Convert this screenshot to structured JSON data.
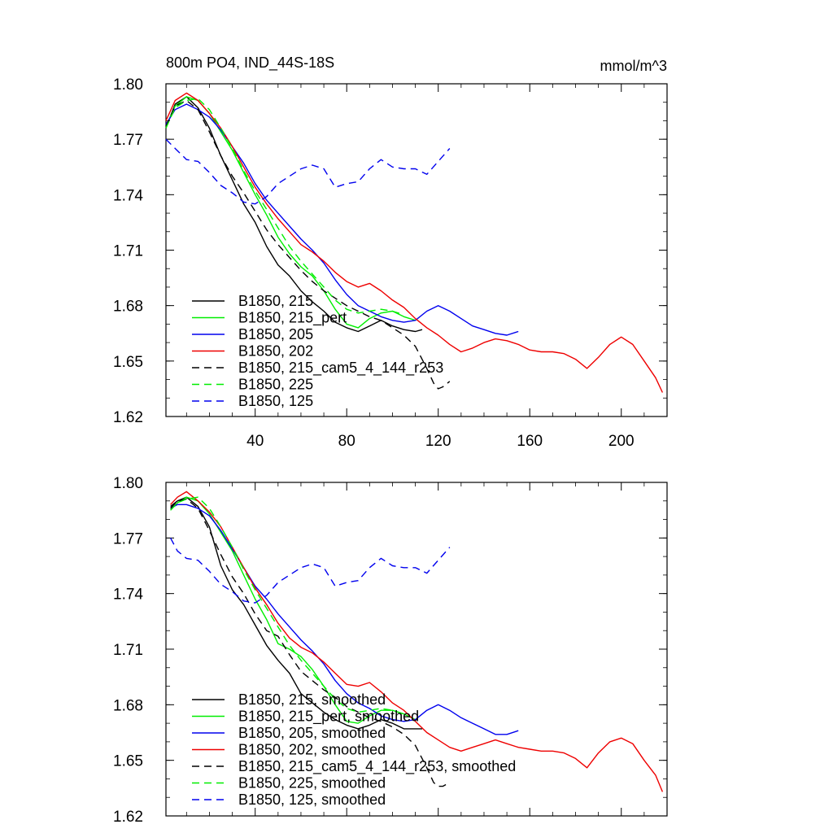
{
  "title_left": "800m PO4, IND_44S-18S",
  "title_right": "mmol/m^3",
  "chart_data": [
    {
      "type": "line",
      "xlim": [
        1,
        220
      ],
      "ylim": [
        1.62,
        1.8
      ],
      "yticks": [
        "1.80",
        "1.77",
        "1.74",
        "1.71",
        "1.68",
        "1.65",
        "1.62"
      ],
      "xticks": [
        "40",
        "80",
        "120",
        "160",
        "200"
      ],
      "legend_position": "bottom-left",
      "series": [
        {
          "name": "B1850, 215",
          "color": "#000000",
          "dash": false,
          "x": [
            1,
            5,
            10,
            15,
            20,
            25,
            30,
            35,
            40,
            45,
            50,
            55,
            60,
            65,
            70,
            75,
            80,
            85,
            90,
            95,
            100,
            105,
            110,
            113
          ],
          "y": [
            1.776,
            1.789,
            1.793,
            1.787,
            1.776,
            1.761,
            1.748,
            1.735,
            1.725,
            1.712,
            1.702,
            1.696,
            1.688,
            1.682,
            1.677,
            1.671,
            1.668,
            1.666,
            1.669,
            1.672,
            1.669,
            1.667,
            1.666,
            1.667
          ]
        },
        {
          "name": "B1850, 215_pert",
          "color": "#00ee00",
          "dash": false,
          "x": [
            1,
            5,
            10,
            15,
            20,
            25,
            30,
            35,
            40,
            45,
            50,
            55,
            60,
            65,
            70,
            75,
            80,
            85,
            90,
            95,
            100,
            105,
            110
          ],
          "y": [
            1.777,
            1.788,
            1.793,
            1.791,
            1.784,
            1.774,
            1.764,
            1.752,
            1.74,
            1.729,
            1.717,
            1.708,
            1.701,
            1.696,
            1.688,
            1.678,
            1.67,
            1.668,
            1.673,
            1.676,
            1.677,
            1.674,
            1.672
          ]
        },
        {
          "name": "B1850, 205",
          "color": "#0000ee",
          "dash": false,
          "x": [
            1,
            5,
            10,
            15,
            20,
            25,
            30,
            35,
            40,
            45,
            50,
            55,
            60,
            65,
            70,
            75,
            80,
            85,
            90,
            95,
            100,
            105,
            110,
            115,
            120,
            125,
            130,
            135,
            140,
            145,
            150,
            155
          ],
          "y": [
            1.778,
            1.786,
            1.789,
            1.786,
            1.782,
            1.775,
            1.766,
            1.757,
            1.746,
            1.737,
            1.73,
            1.723,
            1.716,
            1.71,
            1.703,
            1.694,
            1.686,
            1.68,
            1.677,
            1.674,
            1.672,
            1.671,
            1.672,
            1.677,
            1.68,
            1.677,
            1.673,
            1.669,
            1.667,
            1.665,
            1.664,
            1.666
          ]
        },
        {
          "name": "B1850, 202",
          "color": "#ee0000",
          "dash": false,
          "x": [
            1,
            5,
            10,
            15,
            20,
            25,
            30,
            35,
            40,
            45,
            50,
            55,
            60,
            65,
            70,
            75,
            80,
            85,
            90,
            95,
            100,
            105,
            110,
            115,
            120,
            125,
            130,
            135,
            140,
            145,
            150,
            155,
            160,
            165,
            170,
            175,
            180,
            185,
            190,
            195,
            200,
            205,
            210,
            215,
            218
          ],
          "y": [
            1.78,
            1.791,
            1.795,
            1.791,
            1.784,
            1.776,
            1.766,
            1.755,
            1.744,
            1.735,
            1.727,
            1.72,
            1.713,
            1.709,
            1.704,
            1.698,
            1.693,
            1.69,
            1.692,
            1.688,
            1.683,
            1.679,
            1.673,
            1.668,
            1.664,
            1.659,
            1.655,
            1.657,
            1.66,
            1.662,
            1.661,
            1.659,
            1.656,
            1.655,
            1.655,
            1.654,
            1.651,
            1.646,
            1.652,
            1.659,
            1.663,
            1.659,
            1.65,
            1.641,
            1.633
          ]
        },
        {
          "name": "B1850, 215_cam5_4_144_r253",
          "color": "#000000",
          "dash": true,
          "x": [
            1,
            5,
            10,
            15,
            20,
            25,
            30,
            35,
            40,
            45,
            50,
            55,
            60,
            65,
            70,
            75,
            80,
            85,
            90,
            95,
            100,
            105,
            110,
            115,
            118,
            120,
            122,
            125
          ],
          "y": [
            1.777,
            1.788,
            1.791,
            1.786,
            1.774,
            1.761,
            1.75,
            1.741,
            1.731,
            1.721,
            1.713,
            1.706,
            1.699,
            1.693,
            1.688,
            1.684,
            1.68,
            1.677,
            1.674,
            1.672,
            1.668,
            1.664,
            1.658,
            1.646,
            1.638,
            1.635,
            1.636,
            1.639
          ]
        },
        {
          "name": "B1850, 225",
          "color": "#00ee00",
          "dash": true,
          "x": [
            1,
            5,
            10,
            15,
            20,
            25,
            30,
            35,
            40,
            45,
            50,
            55,
            60,
            65,
            70,
            75,
            80,
            85,
            90,
            95,
            100,
            105
          ],
          "y": [
            1.776,
            1.787,
            1.791,
            1.792,
            1.786,
            1.776,
            1.765,
            1.753,
            1.742,
            1.732,
            1.722,
            1.712,
            1.704,
            1.697,
            1.69,
            1.683,
            1.678,
            1.676,
            1.677,
            1.678,
            1.677,
            1.675
          ]
        },
        {
          "name": "B1850, 125",
          "color": "#0000ee",
          "dash": true,
          "x": [
            1,
            5,
            10,
            15,
            20,
            25,
            30,
            35,
            40,
            45,
            50,
            55,
            60,
            65,
            70,
            75,
            80,
            85,
            90,
            95,
            100,
            105,
            110,
            115,
            120,
            125
          ],
          "y": [
            1.77,
            1.765,
            1.759,
            1.758,
            1.752,
            1.745,
            1.741,
            1.736,
            1.735,
            1.739,
            1.746,
            1.75,
            1.754,
            1.756,
            1.754,
            1.744,
            1.746,
            1.747,
            1.754,
            1.759,
            1.755,
            1.754,
            1.754,
            1.751,
            1.758,
            1.765
          ]
        }
      ]
    },
    {
      "type": "line",
      "xlim": [
        1,
        220
      ],
      "ylim": [
        1.62,
        1.8
      ],
      "yticks": [
        "1.80",
        "1.77",
        "1.74",
        "1.71",
        "1.68",
        "1.65",
        "1.62"
      ],
      "xticks": [],
      "legend_position": "bottom-left",
      "series": [
        {
          "name": "B1850, 215, smoothed",
          "color": "#000000",
          "dash": false,
          "x": [
            3,
            6,
            10,
            15,
            20,
            25,
            30,
            35,
            40,
            45,
            50,
            55,
            60,
            65,
            70,
            75,
            80,
            85,
            90,
            95,
            100,
            105,
            110,
            113
          ],
          "y": [
            1.787,
            1.79,
            1.792,
            1.787,
            1.776,
            1.755,
            1.742,
            1.734,
            1.723,
            1.712,
            1.704,
            1.697,
            1.686,
            1.681,
            1.676,
            1.672,
            1.669,
            1.667,
            1.669,
            1.672,
            1.67,
            1.667,
            1.667,
            1.667
          ]
        },
        {
          "name": "B1850, 215_pert, smoothed",
          "color": "#00ee00",
          "dash": false,
          "x": [
            3,
            6,
            10,
            15,
            20,
            25,
            30,
            35,
            40,
            45,
            50,
            55,
            60,
            65,
            70,
            75,
            80,
            85,
            90,
            95,
            100,
            105,
            110
          ],
          "y": [
            1.785,
            1.789,
            1.792,
            1.79,
            1.783,
            1.773,
            1.763,
            1.75,
            1.737,
            1.726,
            1.713,
            1.71,
            1.706,
            1.699,
            1.69,
            1.68,
            1.671,
            1.67,
            1.674,
            1.677,
            1.677,
            1.675,
            1.672
          ]
        },
        {
          "name": "B1850, 205, smoothed",
          "color": "#0000ee",
          "dash": false,
          "x": [
            3,
            6,
            10,
            15,
            20,
            25,
            30,
            35,
            40,
            45,
            50,
            55,
            60,
            65,
            70,
            75,
            80,
            85,
            90,
            95,
            100,
            105,
            110,
            115,
            120,
            125,
            130,
            135,
            140,
            145,
            150,
            155
          ],
          "y": [
            1.786,
            1.788,
            1.788,
            1.786,
            1.782,
            1.774,
            1.764,
            1.754,
            1.744,
            1.737,
            1.729,
            1.722,
            1.715,
            1.709,
            1.702,
            1.693,
            1.686,
            1.681,
            1.678,
            1.674,
            1.672,
            1.671,
            1.672,
            1.677,
            1.68,
            1.677,
            1.673,
            1.67,
            1.667,
            1.664,
            1.664,
            1.666
          ]
        },
        {
          "name": "B1850, 202, smoothed",
          "color": "#ee0000",
          "dash": false,
          "x": [
            3,
            6,
            10,
            15,
            20,
            25,
            30,
            35,
            40,
            45,
            50,
            55,
            60,
            65,
            70,
            75,
            80,
            85,
            90,
            95,
            100,
            105,
            110,
            115,
            120,
            125,
            130,
            135,
            140,
            145,
            150,
            155,
            160,
            165,
            170,
            175,
            180,
            185,
            190,
            195,
            200,
            205,
            210,
            215,
            218
          ],
          "y": [
            1.788,
            1.792,
            1.795,
            1.79,
            1.784,
            1.776,
            1.765,
            1.754,
            1.743,
            1.734,
            1.724,
            1.716,
            1.711,
            1.708,
            1.703,
            1.697,
            1.691,
            1.69,
            1.692,
            1.687,
            1.681,
            1.677,
            1.671,
            1.665,
            1.661,
            1.657,
            1.655,
            1.657,
            1.659,
            1.661,
            1.659,
            1.657,
            1.656,
            1.655,
            1.655,
            1.654,
            1.651,
            1.646,
            1.654,
            1.66,
            1.662,
            1.659,
            1.65,
            1.642,
            1.633
          ]
        },
        {
          "name": "B1850, 215_cam5_4_144_r253, smoothed",
          "color": "#000000",
          "dash": true,
          "x": [
            3,
            6,
            10,
            15,
            20,
            25,
            30,
            35,
            40,
            45,
            50,
            55,
            60,
            65,
            70,
            75,
            80,
            85,
            90,
            95,
            100,
            105,
            110,
            115,
            118,
            120,
            122,
            125
          ],
          "y": [
            1.786,
            1.79,
            1.791,
            1.786,
            1.774,
            1.761,
            1.749,
            1.74,
            1.729,
            1.72,
            1.717,
            1.707,
            1.698,
            1.693,
            1.688,
            1.684,
            1.679,
            1.676,
            1.673,
            1.671,
            1.668,
            1.664,
            1.658,
            1.646,
            1.638,
            1.636,
            1.636,
            1.638
          ]
        },
        {
          "name": "B1850, 225, smoothed",
          "color": "#00ee00",
          "dash": true,
          "x": [
            3,
            6,
            10,
            15,
            20,
            25,
            30,
            35,
            40,
            45,
            50,
            55,
            60,
            65,
            70,
            75,
            80,
            85,
            90,
            95,
            100,
            105
          ],
          "y": [
            1.785,
            1.789,
            1.791,
            1.792,
            1.786,
            1.776,
            1.765,
            1.753,
            1.742,
            1.732,
            1.722,
            1.712,
            1.704,
            1.697,
            1.69,
            1.683,
            1.678,
            1.676,
            1.677,
            1.678,
            1.677,
            1.675
          ]
        },
        {
          "name": "B1850, 125, smoothed",
          "color": "#0000ee",
          "dash": true,
          "x": [
            3,
            6,
            10,
            15,
            20,
            25,
            30,
            35,
            40,
            45,
            50,
            55,
            60,
            65,
            70,
            75,
            80,
            85,
            90,
            95,
            100,
            105,
            110,
            115,
            120,
            125
          ],
          "y": [
            1.77,
            1.763,
            1.759,
            1.758,
            1.752,
            1.745,
            1.741,
            1.736,
            1.735,
            1.739,
            1.746,
            1.75,
            1.754,
            1.756,
            1.754,
            1.744,
            1.746,
            1.747,
            1.754,
            1.759,
            1.755,
            1.754,
            1.754,
            1.751,
            1.758,
            1.765
          ]
        }
      ]
    }
  ]
}
